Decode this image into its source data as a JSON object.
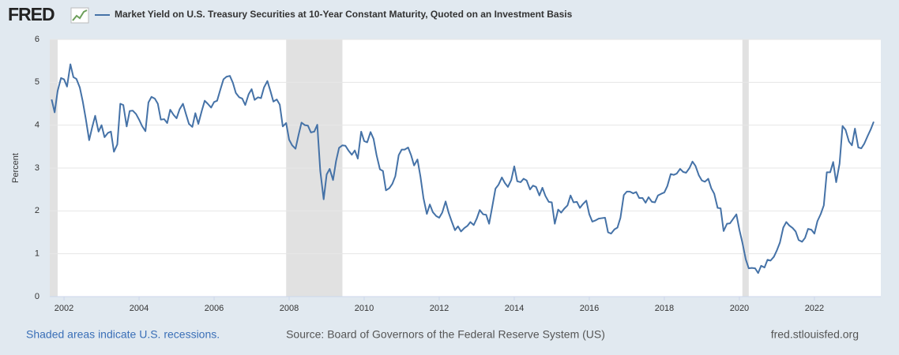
{
  "chart_data": {
    "type": "line",
    "brand": "FRED",
    "title": "Market Yield on U.S. Treasury Securities at 10-Year Constant Maturity, Quoted on an Investment Basis",
    "y_label": "Percent",
    "note": "Shaded areas indicate U.S. recessions.",
    "source": "Source: Board of Governors of the Federal Reserve System (US)",
    "site": "fred.stlouisfed.org",
    "xlim": [
      2001.62,
      2023.77
    ],
    "xticks": [
      2002,
      2004,
      2006,
      2008,
      2010,
      2012,
      2014,
      2016,
      2018,
      2020,
      2022
    ],
    "ylim": [
      0,
      6
    ],
    "yticks": [
      0,
      1,
      2,
      3,
      4,
      5,
      6
    ],
    "grid": true,
    "recessions": [
      [
        2001.17,
        2001.83
      ],
      [
        2007.92,
        2009.42
      ],
      [
        2020.08,
        2020.25
      ]
    ],
    "recession_color": "#e1e1e1",
    "x": [
      2001.67,
      2001.75,
      2001.83,
      2001.92,
      2002,
      2002.08,
      2002.17,
      2002.25,
      2002.33,
      2002.42,
      2002.5,
      2002.58,
      2002.67,
      2002.75,
      2002.83,
      2002.92,
      2003,
      2003.08,
      2003.17,
      2003.25,
      2003.33,
      2003.42,
      2003.5,
      2003.58,
      2003.67,
      2003.75,
      2003.83,
      2003.92,
      2004,
      2004.08,
      2004.17,
      2004.25,
      2004.33,
      2004.42,
      2004.5,
      2004.58,
      2004.67,
      2004.75,
      2004.83,
      2004.92,
      2005,
      2005.08,
      2005.17,
      2005.25,
      2005.33,
      2005.42,
      2005.5,
      2005.58,
      2005.67,
      2005.75,
      2005.83,
      2005.92,
      2006,
      2006.08,
      2006.17,
      2006.25,
      2006.33,
      2006.42,
      2006.5,
      2006.58,
      2006.67,
      2006.75,
      2006.83,
      2006.92,
      2007,
      2007.08,
      2007.17,
      2007.25,
      2007.33,
      2007.42,
      2007.5,
      2007.58,
      2007.67,
      2007.75,
      2007.83,
      2007.92,
      2008,
      2008.08,
      2008.17,
      2008.25,
      2008.33,
      2008.42,
      2008.5,
      2008.58,
      2008.67,
      2008.75,
      2008.83,
      2008.92,
      2009,
      2009.08,
      2009.17,
      2009.25,
      2009.33,
      2009.42,
      2009.5,
      2009.58,
      2009.67,
      2009.75,
      2009.83,
      2009.92,
      2010,
      2010.08,
      2010.17,
      2010.25,
      2010.33,
      2010.42,
      2010.5,
      2010.58,
      2010.67,
      2010.75,
      2010.83,
      2010.92,
      2011,
      2011.08,
      2011.17,
      2011.25,
      2011.33,
      2011.42,
      2011.5,
      2011.58,
      2011.67,
      2011.75,
      2011.83,
      2011.92,
      2012,
      2012.08,
      2012.17,
      2012.25,
      2012.33,
      2012.42,
      2012.5,
      2012.58,
      2012.67,
      2012.75,
      2012.83,
      2012.92,
      2013,
      2013.08,
      2013.17,
      2013.25,
      2013.33,
      2013.42,
      2013.5,
      2013.58,
      2013.67,
      2013.75,
      2013.83,
      2013.92,
      2014,
      2014.08,
      2014.17,
      2014.25,
      2014.33,
      2014.42,
      2014.5,
      2014.58,
      2014.67,
      2014.75,
      2014.83,
      2014.92,
      2015,
      2015.08,
      2015.17,
      2015.25,
      2015.33,
      2015.42,
      2015.5,
      2015.58,
      2015.67,
      2015.75,
      2015.83,
      2015.92,
      2016,
      2016.08,
      2016.17,
      2016.25,
      2016.33,
      2016.42,
      2016.5,
      2016.58,
      2016.67,
      2016.75,
      2016.83,
      2016.92,
      2017,
      2017.08,
      2017.17,
      2017.25,
      2017.33,
      2017.42,
      2017.5,
      2017.58,
      2017.67,
      2017.75,
      2017.83,
      2017.92,
      2018,
      2018.08,
      2018.17,
      2018.25,
      2018.33,
      2018.42,
      2018.5,
      2018.58,
      2018.67,
      2018.75,
      2018.83,
      2018.92,
      2019,
      2019.08,
      2019.17,
      2019.25,
      2019.33,
      2019.42,
      2019.5,
      2019.58,
      2019.67,
      2019.75,
      2019.83,
      2019.92,
      2020,
      2020.08,
      2020.17,
      2020.25,
      2020.33,
      2020.42,
      2020.5,
      2020.58,
      2020.67,
      2020.75,
      2020.83,
      2020.92,
      2021,
      2021.08,
      2021.17,
      2021.25,
      2021.33,
      2021.42,
      2021.5,
      2021.58,
      2021.67,
      2021.75,
      2021.83,
      2021.92,
      2022,
      2022.08,
      2022.17,
      2022.25,
      2022.33,
      2022.42,
      2022.5,
      2022.58,
      2022.67,
      2022.75,
      2022.83,
      2022.92,
      2023,
      2023.08,
      2023.17,
      2023.25,
      2023.33,
      2023.42,
      2023.5,
      2023.58
    ],
    "series": [
      {
        "name": "Market Yield on U.S. Treasury Securities at 10-Year Constant Maturity, Quoted on an Investment Basis",
        "color": "#4572a7",
        "values": [
          4.6,
          4.3,
          4.8,
          5.1,
          5.07,
          4.9,
          5.42,
          5.12,
          5.08,
          4.88,
          4.55,
          4.15,
          3.65,
          3.95,
          4.22,
          3.85,
          4.0,
          3.72,
          3.82,
          3.85,
          3.38,
          3.55,
          4.5,
          4.47,
          3.97,
          4.33,
          4.34,
          4.26,
          4.13,
          3.98,
          3.86,
          4.53,
          4.66,
          4.62,
          4.5,
          4.13,
          4.14,
          4.05,
          4.36,
          4.24,
          4.16,
          4.37,
          4.5,
          4.26,
          4.03,
          3.96,
          4.28,
          4.03,
          4.33,
          4.57,
          4.5,
          4.41,
          4.54,
          4.57,
          4.84,
          5.07,
          5.13,
          5.15,
          4.99,
          4.75,
          4.65,
          4.62,
          4.47,
          4.72,
          4.84,
          4.59,
          4.65,
          4.63,
          4.88,
          5.03,
          4.8,
          4.55,
          4.6,
          4.48,
          3.97,
          4.05,
          3.66,
          3.53,
          3.45,
          3.77,
          4.06,
          4.0,
          3.99,
          3.83,
          3.85,
          4.01,
          2.93,
          2.27,
          2.85,
          2.98,
          2.72,
          3.16,
          3.47,
          3.53,
          3.52,
          3.41,
          3.31,
          3.41,
          3.22,
          3.85,
          3.63,
          3.6,
          3.84,
          3.68,
          3.3,
          2.97,
          2.93,
          2.48,
          2.53,
          2.63,
          2.81,
          3.3,
          3.43,
          3.43,
          3.48,
          3.3,
          3.06,
          3.2,
          2.8,
          2.3,
          1.93,
          2.15,
          1.97,
          1.88,
          1.84,
          1.96,
          2.22,
          1.96,
          1.76,
          1.55,
          1.64,
          1.52,
          1.6,
          1.65,
          1.74,
          1.67,
          1.82,
          2.02,
          1.92,
          1.91,
          1.7,
          2.13,
          2.52,
          2.61,
          2.78,
          2.65,
          2.56,
          2.72,
          3.04,
          2.69,
          2.67,
          2.75,
          2.71,
          2.5,
          2.59,
          2.56,
          2.36,
          2.54,
          2.35,
          2.21,
          2.2,
          1.7,
          2.03,
          1.96,
          2.05,
          2.13,
          2.36,
          2.2,
          2.21,
          2.07,
          2.16,
          2.24,
          1.92,
          1.75,
          1.78,
          1.82,
          1.83,
          1.84,
          1.5,
          1.47,
          1.57,
          1.61,
          1.84,
          2.37,
          2.45,
          2.45,
          2.41,
          2.44,
          2.3,
          2.3,
          2.19,
          2.32,
          2.21,
          2.2,
          2.36,
          2.4,
          2.43,
          2.58,
          2.86,
          2.84,
          2.87,
          2.98,
          2.91,
          2.89,
          3.0,
          3.15,
          3.05,
          2.83,
          2.71,
          2.68,
          2.75,
          2.53,
          2.4,
          2.07,
          2.06,
          1.53,
          1.7,
          1.71,
          1.81,
          1.92,
          1.56,
          1.26,
          0.87,
          0.66,
          0.67,
          0.66,
          0.55,
          0.72,
          0.68,
          0.86,
          0.84,
          0.93,
          1.08,
          1.26,
          1.61,
          1.74,
          1.66,
          1.6,
          1.52,
          1.32,
          1.28,
          1.37,
          1.58,
          1.56,
          1.47,
          1.76,
          1.93,
          2.13,
          2.9,
          2.9,
          3.14,
          2.67,
          3.1,
          3.98,
          3.89,
          3.62,
          3.53,
          3.92,
          3.48,
          3.46,
          3.57,
          3.75,
          3.9,
          4.08
        ]
      }
    ]
  }
}
